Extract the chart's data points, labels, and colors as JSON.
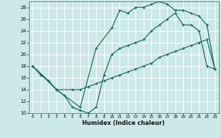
{
  "xlabel": "Humidex (Indice chaleur)",
  "background_color": "#cce8e8",
  "grid_color": "#ffffff",
  "line_color": "#1a6b5a",
  "xlim": [
    -0.5,
    23.5
  ],
  "ylim": [
    10,
    29
  ],
  "xticks": [
    0,
    1,
    2,
    3,
    4,
    5,
    6,
    7,
    8,
    9,
    10,
    11,
    12,
    13,
    14,
    15,
    16,
    17,
    18,
    19,
    20,
    21,
    22,
    23
  ],
  "yticks": [
    10,
    12,
    14,
    16,
    18,
    20,
    22,
    24,
    26,
    28
  ],
  "line1_x": [
    0,
    1,
    2,
    3,
    4,
    5,
    6,
    7,
    8,
    9,
    10,
    11,
    12,
    13,
    14,
    15,
    16,
    17,
    18,
    19,
    20,
    21,
    22,
    23
  ],
  "line1_y": [
    18,
    16.5,
    15.5,
    14,
    13,
    11,
    10.5,
    10,
    11,
    16.5,
    20,
    21,
    21.5,
    22,
    22.5,
    24,
    25,
    26,
    27,
    25,
    25,
    24,
    18,
    17.5
  ],
  "line2_x": [
    0,
    2,
    3,
    5,
    6,
    7,
    8,
    9,
    10,
    11,
    12,
    13,
    14,
    15,
    16,
    17,
    18,
    19,
    20,
    21,
    22,
    23
  ],
  "line2_y": [
    18,
    15.5,
    14,
    14,
    14,
    14.5,
    15,
    15.5,
    16,
    16.5,
    17,
    17.5,
    18,
    18.5,
    19.5,
    20,
    20.5,
    21,
    21.5,
    22,
    22.5,
    17.5
  ],
  "line3_x": [
    0,
    3,
    6,
    8,
    10,
    11,
    12,
    13,
    14,
    15,
    16,
    17,
    18,
    19,
    20,
    21,
    22,
    23
  ],
  "line3_y": [
    18,
    14,
    11,
    21,
    24.5,
    27.5,
    27,
    28,
    28,
    28.5,
    29,
    28.5,
    27.5,
    27.5,
    27,
    26.5,
    25,
    17.5
  ],
  "markersize": 3,
  "linewidth": 0.9
}
